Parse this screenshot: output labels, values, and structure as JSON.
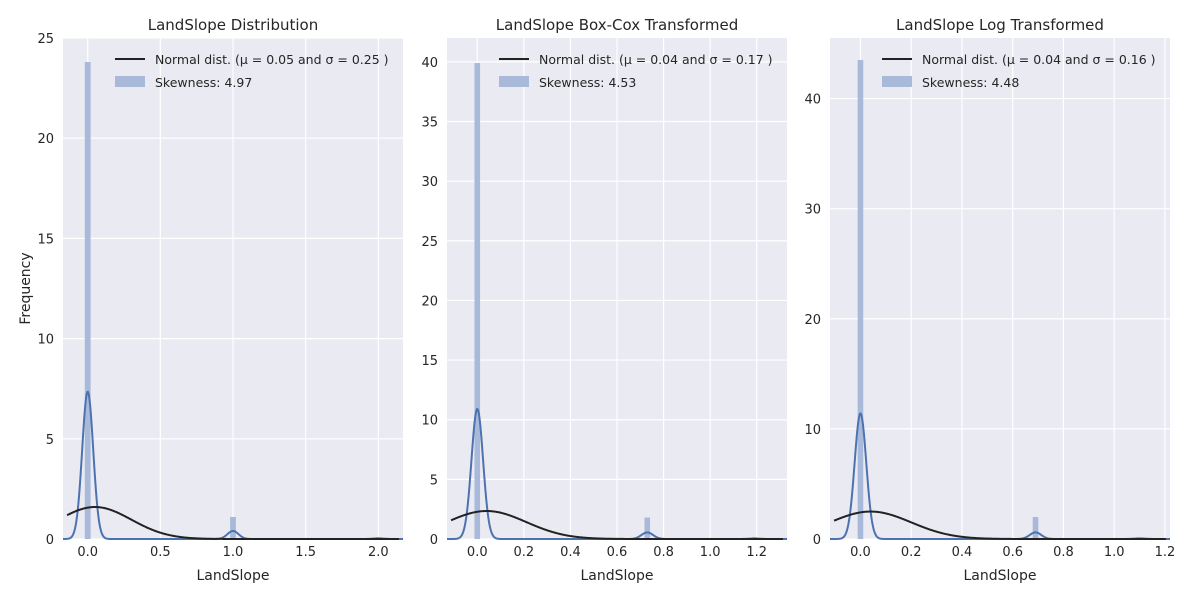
{
  "chart_data": [
    {
      "type": "histogram",
      "title": "LandSlope Distribution",
      "xlabel": "LandSlope",
      "ylabel": "Frequency",
      "xlim": [
        -0.17,
        2.17
      ],
      "ylim": [
        0,
        25
      ],
      "xticks": [
        0.0,
        0.5,
        1.0,
        1.5,
        2.0
      ],
      "xtick_labels": [
        "0.0",
        "0.5",
        "1.0",
        "1.5",
        "2.0"
      ],
      "yticks": [
        0,
        5,
        10,
        15,
        20,
        25
      ],
      "ytick_labels": [
        "0",
        "5",
        "10",
        "15",
        "20",
        "25"
      ],
      "grid": true,
      "legend": {
        "placement": "upper-right",
        "entries": [
          "Normal dist. (μ = 0.05 and σ = 0.25 )",
          "Skewness: 4.97"
        ]
      },
      "histogram": {
        "bars": [
          {
            "x": 0.0,
            "height": 23.8
          },
          {
            "x": 1.0,
            "height": 1.1
          },
          {
            "x": 2.0,
            "height": 0.09
          }
        ],
        "bin_width": 0.04
      },
      "kde": {
        "peaks": [
          {
            "x": 0.0,
            "height": 7.35,
            "sigma": 0.038
          },
          {
            "x": 1.0,
            "height": 0.4,
            "sigma": 0.038
          },
          {
            "x": 2.0,
            "height": 0.03,
            "sigma": 0.038
          }
        ]
      },
      "normal": {
        "mu": 0.05,
        "sigma": 0.25
      }
    },
    {
      "type": "histogram",
      "title": "LandSlope Box-Cox Transformed",
      "xlabel": "LandSlope",
      "ylabel": "",
      "xlim": [
        -0.13,
        1.33
      ],
      "ylim": [
        0,
        42
      ],
      "xticks": [
        0.0,
        0.2,
        0.4,
        0.6,
        0.8,
        1.0,
        1.2
      ],
      "xtick_labels": [
        "0.0",
        "0.2",
        "0.4",
        "0.6",
        "0.8",
        "1.0",
        "1.2"
      ],
      "yticks": [
        0,
        5,
        10,
        15,
        20,
        25,
        30,
        35,
        40
      ],
      "ytick_labels": [
        "0",
        "5",
        "10",
        "15",
        "20",
        "25",
        "30",
        "35",
        "40"
      ],
      "grid": true,
      "legend": {
        "placement": "upper-right",
        "entries": [
          "Normal dist. (μ = 0.04 and σ = 0.17 )",
          "Skewness: 4.53"
        ]
      },
      "histogram": {
        "bars": [
          {
            "x": 0.0,
            "height": 39.9
          },
          {
            "x": 0.73,
            "height": 1.8
          },
          {
            "x": 1.19,
            "height": 0.15
          }
        ],
        "bin_width": 0.024
      },
      "kde": {
        "peaks": [
          {
            "x": 0.0,
            "height": 10.9,
            "sigma": 0.025
          },
          {
            "x": 0.73,
            "height": 0.55,
            "sigma": 0.025
          },
          {
            "x": 1.19,
            "height": 0.04,
            "sigma": 0.025
          }
        ]
      },
      "normal": {
        "mu": 0.04,
        "sigma": 0.17
      }
    },
    {
      "type": "histogram",
      "title": "LandSlope Log Transformed",
      "xlabel": "LandSlope",
      "ylabel": "",
      "xlim": [
        -0.12,
        1.22
      ],
      "ylim": [
        0,
        45.5
      ],
      "xticks": [
        0.0,
        0.2,
        0.4,
        0.6,
        0.8,
        1.0,
        1.2
      ],
      "xtick_labels": [
        "0.0",
        "0.2",
        "0.4",
        "0.6",
        "0.8",
        "1.0",
        "1.2"
      ],
      "yticks": [
        0,
        10,
        20,
        30,
        40
      ],
      "ytick_labels": [
        "0",
        "10",
        "20",
        "30",
        "40"
      ],
      "grid": true,
      "legend": {
        "placement": "upper-right",
        "entries": [
          "Normal dist. (μ = 0.04 and σ = 0.16 )",
          "Skewness: 4.48"
        ]
      },
      "histogram": {
        "bars": [
          {
            "x": 0.0,
            "height": 43.5
          },
          {
            "x": 0.69,
            "height": 2.0
          },
          {
            "x": 1.1,
            "height": 0.16
          }
        ],
        "bin_width": 0.022
      },
      "kde": {
        "peaks": [
          {
            "x": 0.0,
            "height": 11.4,
            "sigma": 0.023
          },
          {
            "x": 0.69,
            "height": 0.6,
            "sigma": 0.023
          },
          {
            "x": 1.1,
            "height": 0.05,
            "sigma": 0.023
          }
        ]
      },
      "normal": {
        "mu": 0.04,
        "sigma": 0.16
      }
    }
  ],
  "colors": {
    "plot_background": "#eaeaf2",
    "grid": "#ffffff",
    "histogram_bar": "#a8b9d9",
    "kde_line": "#4c72b0",
    "normal_line": "#222222",
    "text": "#262626"
  }
}
